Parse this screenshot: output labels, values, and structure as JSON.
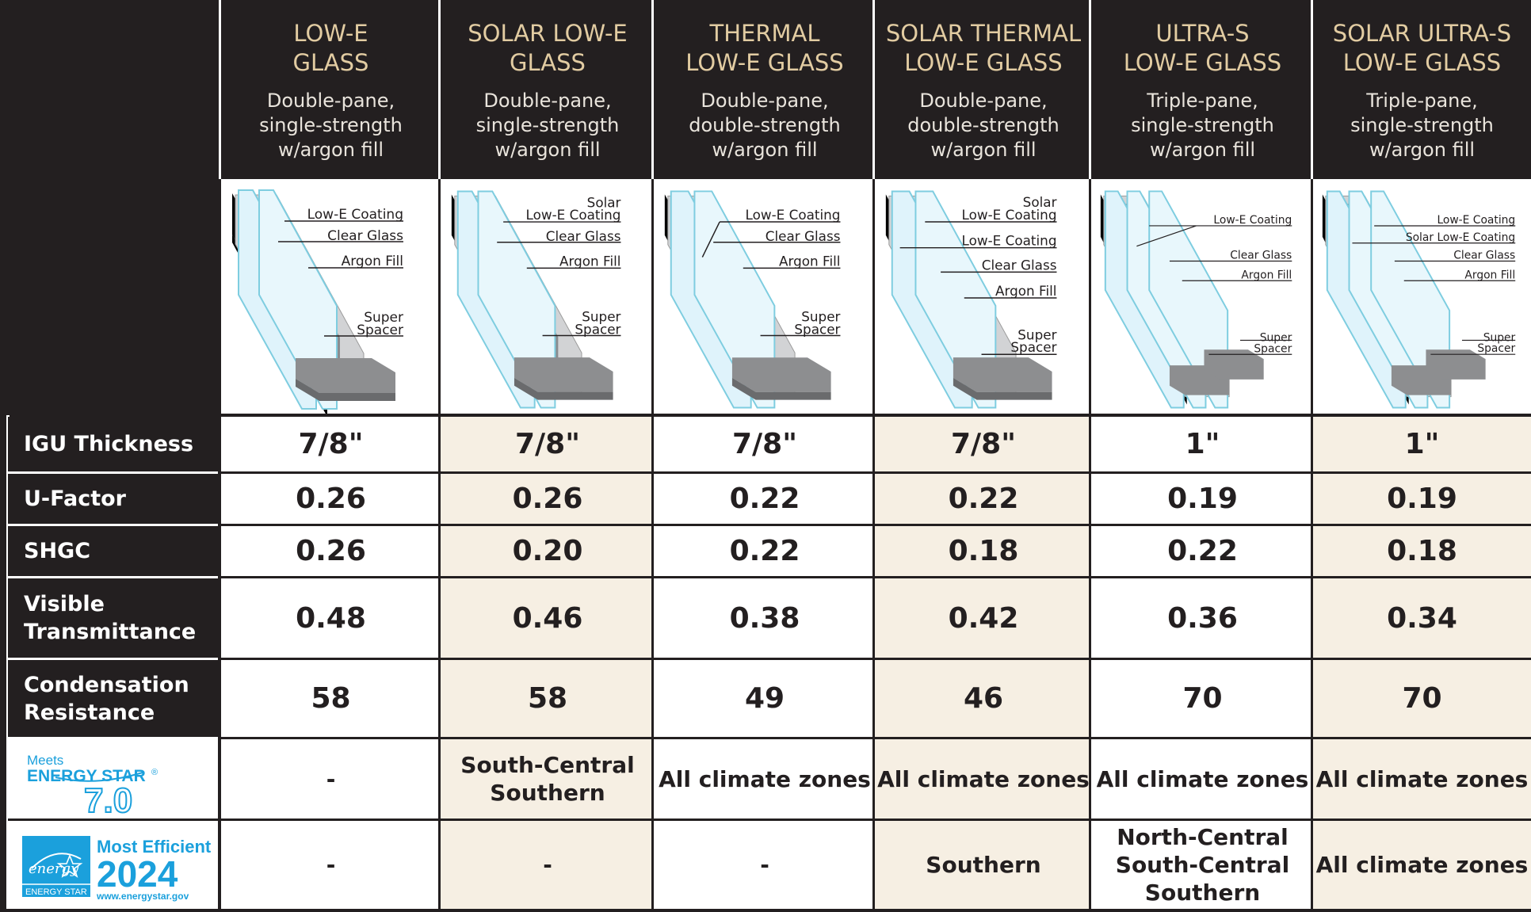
{
  "columns": [
    {
      "title_line1": "LOW-E",
      "title_line2": "GLASS",
      "sub1": "Double-pane,",
      "sub2": "single-strength",
      "sub3": "w/argon fill"
    },
    {
      "title_line1": "SOLAR LOW-E",
      "title_line2": "GLASS",
      "sub1": "Double-pane,",
      "sub2": "single-strength",
      "sub3": "w/argon fill"
    },
    {
      "title_line1": "THERMAL",
      "title_line2": "LOW-E GLASS",
      "sub1": "Double-pane,",
      "sub2": "double-strength",
      "sub3": "w/argon fill"
    },
    {
      "title_line1": "SOLAR THERMAL",
      "title_line2": "LOW-E GLASS",
      "sub1": "Double-pane,",
      "sub2": "double-strength",
      "sub3": "w/argon fill"
    },
    {
      "title_line1": "ULTRA-S",
      "title_line2": "LOW-E GLASS",
      "sub1": "Triple-pane,",
      "sub2": "single-strength",
      "sub3": "w/argon fill"
    },
    {
      "title_line1": "SOLAR ULTRA-S",
      "title_line2": "LOW-E GLASS",
      "sub1": "Triple-pane,",
      "sub2": "single-strength",
      "sub3": "w/argon fill"
    }
  ],
  "diagram_labels": {
    "low_e_coating": "Low-E Coating",
    "solar": "Solar",
    "solar_low_e_coating": "Solar Low-E Coating",
    "clear_glass": "Clear Glass",
    "argon_fill": "Argon Fill",
    "super": "Super",
    "spacer": "Spacer"
  },
  "rows": {
    "igu": {
      "label": "IGU Thickness",
      "values": [
        "7/8\"",
        "7/8\"",
        "7/8\"",
        "7/8\"",
        "1\"",
        "1\""
      ]
    },
    "ufactor": {
      "label": "U-Factor",
      "values": [
        "0.26",
        "0.26",
        "0.22",
        "0.22",
        "0.19",
        "0.19"
      ]
    },
    "shgc": {
      "label": "SHGC",
      "values": [
        "0.26",
        "0.20",
        "0.22",
        "0.18",
        "0.22",
        "0.18"
      ]
    },
    "vt": {
      "label1": "Visible",
      "label2": "Transmittance",
      "values": [
        "0.48",
        "0.46",
        "0.38",
        "0.42",
        "0.36",
        "0.34"
      ]
    },
    "cr": {
      "label1": "Condensation",
      "label2": "Resistance",
      "values": [
        "58",
        "58",
        "49",
        "46",
        "70",
        "70"
      ]
    },
    "es7": {
      "values": [
        {
          "l1": "-",
          "l2": ""
        },
        {
          "l1": "South-Central",
          "l2": "Southern"
        },
        {
          "l1": "All climate zones",
          "l2": ""
        },
        {
          "l1": "All climate zones",
          "l2": ""
        },
        {
          "l1": "All climate zones",
          "l2": ""
        },
        {
          "l1": "All climate zones",
          "l2": ""
        }
      ]
    },
    "me2024": {
      "values": [
        {
          "l1": "-",
          "l2": "",
          "l3": ""
        },
        {
          "l1": "-",
          "l2": "",
          "l3": ""
        },
        {
          "l1": "-",
          "l2": "",
          "l3": ""
        },
        {
          "l1": "Southern",
          "l2": "",
          "l3": ""
        },
        {
          "l1": "North-Central",
          "l2": "South-Central",
          "l3": "Southern"
        },
        {
          "l1": "All climate zones",
          "l2": "",
          "l3": ""
        }
      ]
    }
  },
  "logos": {
    "meets": "Meets",
    "energy_star": "ENERGY STAR",
    "reg": "®",
    "version": "7.0",
    "most_efficient": "Most Efficient",
    "year": "2024",
    "energy_script": "energy",
    "energy_star_small": "ENERGY STAR",
    "url": "www.energystar.gov"
  },
  "colors": {
    "dark": "#231f20",
    "gold": "#e2cca2",
    "cream": "#f6efe3",
    "energy_blue": "#1ba0dc"
  }
}
